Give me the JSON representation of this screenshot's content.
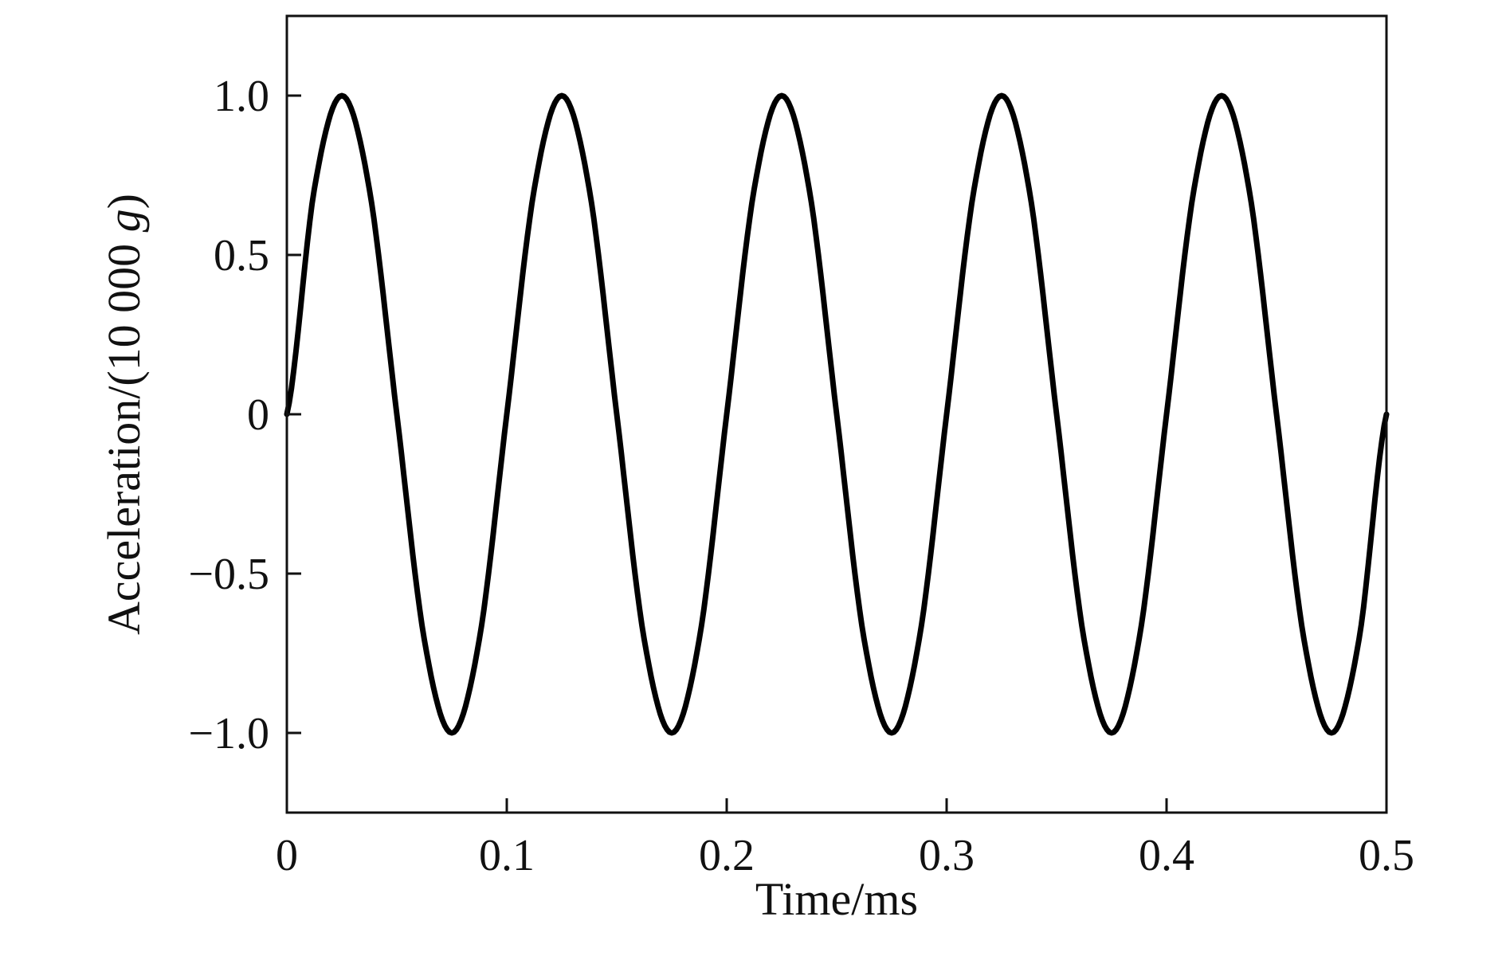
{
  "chart_data": {
    "type": "line",
    "title": "",
    "xlabel": "Time/ms",
    "ylabel": "Acceleration/(10 000 g)",
    "ylabel_parts": {
      "prefix": "Acceleration/(10 000 ",
      "unit": "g",
      "suffix": ")"
    },
    "xlim": [
      0,
      0.5
    ],
    "ylim": [
      -1.25,
      1.25
    ],
    "grid": false,
    "legend": "none",
    "x_ticks": [
      0,
      0.1,
      0.2,
      0.3,
      0.4,
      0.5
    ],
    "x_tick_labels": [
      "0",
      "0.1",
      "0.2",
      "0.3",
      "0.4",
      "0.5"
    ],
    "y_ticks": [
      -1.0,
      -0.5,
      0,
      0.5,
      1.0
    ],
    "y_tick_labels": [
      "−1.0",
      "−0.5",
      "0",
      "0.5",
      "1.0"
    ],
    "series": [
      {
        "color": "#000000",
        "x": [
          0,
          0.0125,
          0.025,
          0.0375,
          0.05,
          0.0625,
          0.075,
          0.0875,
          0.1,
          0.1125,
          0.125,
          0.1375,
          0.15,
          0.1625,
          0.175,
          0.1875,
          0.2,
          0.2125,
          0.225,
          0.2375,
          0.25,
          0.2625,
          0.275,
          0.2875,
          0.3,
          0.3125,
          0.325,
          0.3375,
          0.35,
          0.3625,
          0.375,
          0.3875,
          0.4,
          0.4125,
          0.425,
          0.4375,
          0.45,
          0.4625,
          0.475,
          0.4875,
          0.5
        ],
        "y": [
          0,
          0.707,
          1.0,
          0.707,
          0,
          -0.707,
          -1.0,
          -0.707,
          0,
          0.707,
          1.0,
          0.707,
          0,
          -0.707,
          -1.0,
          -0.707,
          0,
          0.707,
          1.0,
          0.707,
          0,
          -0.707,
          -1.0,
          -0.707,
          0,
          0.707,
          1.0,
          0.707,
          0,
          -0.707,
          -1.0,
          -0.707,
          0,
          0.707,
          1.0,
          0.707,
          0,
          -0.707,
          -1.0,
          -0.707,
          0
        ]
      }
    ]
  }
}
